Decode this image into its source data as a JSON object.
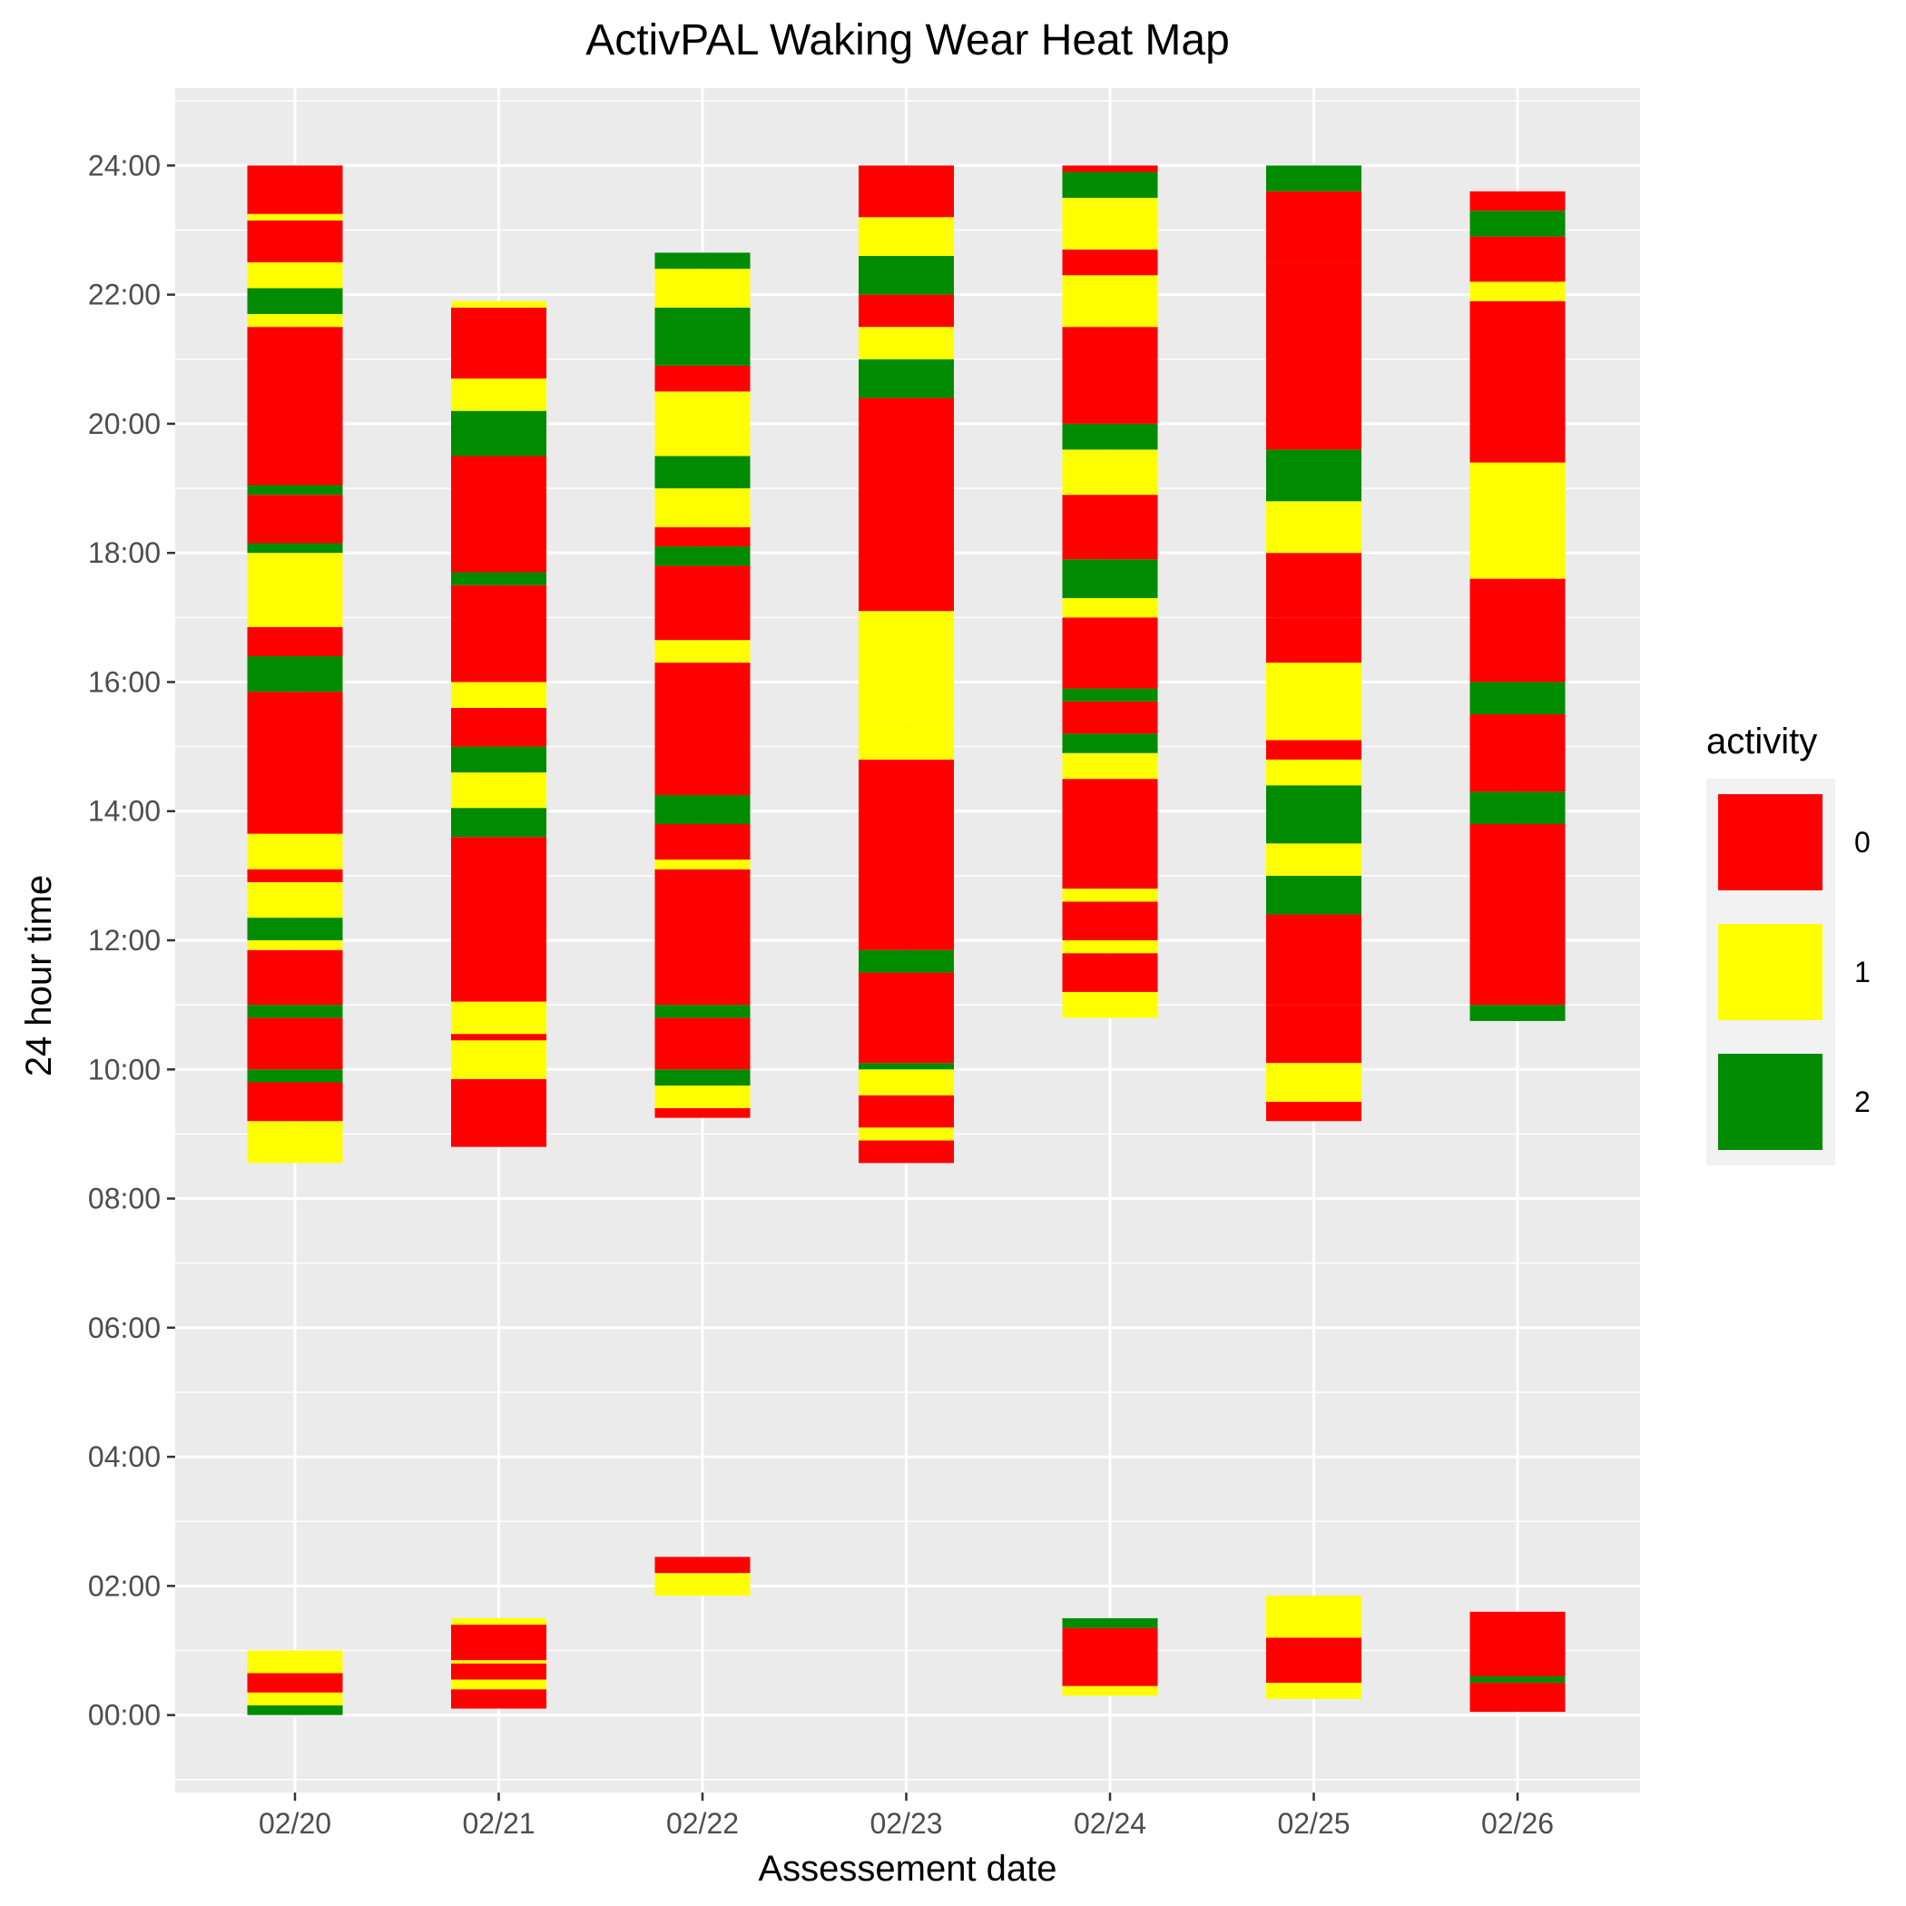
{
  "chart_data": {
    "type": "heatmap",
    "title": "ActivPAL Waking Wear Heat Map",
    "xlabel": "Assessement date",
    "ylabel": "24 hour time",
    "x_categories": [
      "02/20",
      "02/21",
      "02/22",
      "02/23",
      "02/24",
      "02/25",
      "02/26"
    ],
    "y_ticks": [
      "00:00",
      "02:00",
      "04:00",
      "06:00",
      "08:00",
      "10:00",
      "12:00",
      "14:00",
      "16:00",
      "18:00",
      "20:00",
      "22:00",
      "24:00"
    ],
    "ylim_hours": [
      -1.2,
      25.2
    ],
    "grid": true,
    "legend": {
      "title": "activity",
      "position": "right",
      "entries": [
        {
          "label": "0",
          "color": "#ff0000"
        },
        {
          "label": "1",
          "color": "#ffff00"
        },
        {
          "label": "2",
          "color": "#008b00"
        }
      ]
    },
    "series": [
      {
        "date": "02/20",
        "segments": [
          [
            0.0,
            0.15,
            2
          ],
          [
            0.15,
            0.35,
            1
          ],
          [
            0.35,
            0.65,
            0
          ],
          [
            0.65,
            1.0,
            1
          ],
          [
            8.55,
            9.2,
            1
          ],
          [
            9.2,
            9.8,
            0
          ],
          [
            9.8,
            10.0,
            2
          ],
          [
            10.0,
            10.8,
            0
          ],
          [
            10.8,
            11.0,
            2
          ],
          [
            11.0,
            11.85,
            0
          ],
          [
            11.85,
            12.0,
            1
          ],
          [
            12.0,
            12.35,
            2
          ],
          [
            12.35,
            12.9,
            1
          ],
          [
            12.9,
            13.1,
            0
          ],
          [
            13.1,
            13.65,
            1
          ],
          [
            13.65,
            15.85,
            0
          ],
          [
            15.85,
            16.4,
            2
          ],
          [
            16.4,
            16.85,
            0
          ],
          [
            16.85,
            18.0,
            1
          ],
          [
            18.0,
            18.15,
            2
          ],
          [
            18.15,
            18.9,
            0
          ],
          [
            18.9,
            19.05,
            2
          ],
          [
            19.05,
            21.5,
            0
          ],
          [
            21.5,
            21.7,
            1
          ],
          [
            21.7,
            22.1,
            2
          ],
          [
            22.1,
            22.5,
            1
          ],
          [
            22.5,
            23.15,
            0
          ],
          [
            23.15,
            23.25,
            1
          ],
          [
            23.25,
            24.0,
            0
          ]
        ]
      },
      {
        "date": "02/21",
        "segments": [
          [
            0.1,
            0.4,
            0
          ],
          [
            0.4,
            0.55,
            1
          ],
          [
            0.55,
            0.8,
            0
          ],
          [
            0.8,
            0.85,
            1
          ],
          [
            0.85,
            1.4,
            0
          ],
          [
            1.4,
            1.5,
            1
          ],
          [
            8.8,
            9.85,
            0
          ],
          [
            9.85,
            10.45,
            1
          ],
          [
            10.45,
            10.55,
            0
          ],
          [
            10.55,
            11.05,
            1
          ],
          [
            11.05,
            13.6,
            0
          ],
          [
            13.6,
            14.05,
            2
          ],
          [
            14.05,
            14.6,
            1
          ],
          [
            14.6,
            15.0,
            2
          ],
          [
            15.0,
            15.6,
            0
          ],
          [
            15.6,
            16.0,
            1
          ],
          [
            16.0,
            17.5,
            0
          ],
          [
            17.5,
            17.7,
            2
          ],
          [
            17.7,
            19.5,
            0
          ],
          [
            19.5,
            20.2,
            2
          ],
          [
            20.2,
            20.7,
            1
          ],
          [
            20.7,
            21.8,
            0
          ],
          [
            21.8,
            21.9,
            1
          ]
        ]
      },
      {
        "date": "02/22",
        "segments": [
          [
            1.85,
            2.2,
            1
          ],
          [
            2.2,
            2.45,
            0
          ],
          [
            9.25,
            9.4,
            0
          ],
          [
            9.4,
            9.75,
            1
          ],
          [
            9.75,
            10.0,
            2
          ],
          [
            10.0,
            10.8,
            0
          ],
          [
            10.8,
            11.0,
            2
          ],
          [
            11.0,
            13.1,
            0
          ],
          [
            13.1,
            13.25,
            1
          ],
          [
            13.25,
            13.8,
            0
          ],
          [
            13.8,
            14.25,
            2
          ],
          [
            14.25,
            16.3,
            0
          ],
          [
            16.3,
            16.65,
            1
          ],
          [
            16.65,
            17.8,
            0
          ],
          [
            17.8,
            18.1,
            2
          ],
          [
            18.1,
            18.4,
            0
          ],
          [
            18.4,
            19.0,
            1
          ],
          [
            19.0,
            19.5,
            2
          ],
          [
            19.5,
            20.5,
            1
          ],
          [
            20.5,
            20.9,
            0
          ],
          [
            20.9,
            21.8,
            2
          ],
          [
            21.8,
            22.4,
            1
          ],
          [
            22.4,
            22.65,
            2
          ]
        ]
      },
      {
        "date": "02/23",
        "segments": [
          [
            8.55,
            8.9,
            0
          ],
          [
            8.9,
            9.1,
            1
          ],
          [
            9.1,
            9.6,
            0
          ],
          [
            9.6,
            10.0,
            1
          ],
          [
            10.0,
            10.1,
            2
          ],
          [
            10.1,
            11.5,
            0
          ],
          [
            11.5,
            11.85,
            2
          ],
          [
            11.85,
            14.8,
            0
          ],
          [
            14.8,
            15.4,
            1
          ],
          [
            15.4,
            17.1,
            1
          ],
          [
            17.1,
            20.4,
            0
          ],
          [
            20.4,
            21.0,
            2
          ],
          [
            21.0,
            21.5,
            1
          ],
          [
            21.5,
            22.0,
            0
          ],
          [
            22.0,
            22.6,
            2
          ],
          [
            22.6,
            23.2,
            1
          ],
          [
            23.2,
            24.0,
            0
          ]
        ]
      },
      {
        "date": "02/24",
        "segments": [
          [
            0.3,
            0.45,
            1
          ],
          [
            0.45,
            1.35,
            0
          ],
          [
            1.35,
            1.5,
            2
          ],
          [
            10.8,
            11.2,
            1
          ],
          [
            11.2,
            11.8,
            0
          ],
          [
            11.8,
            12.0,
            1
          ],
          [
            12.0,
            12.6,
            0
          ],
          [
            12.6,
            12.8,
            1
          ],
          [
            12.8,
            14.5,
            0
          ],
          [
            14.5,
            14.9,
            1
          ],
          [
            14.9,
            15.2,
            2
          ],
          [
            15.2,
            15.7,
            0
          ],
          [
            15.7,
            15.9,
            2
          ],
          [
            15.9,
            17.0,
            0
          ],
          [
            17.0,
            17.3,
            1
          ],
          [
            17.3,
            17.9,
            2
          ],
          [
            17.9,
            18.9,
            0
          ],
          [
            18.9,
            19.6,
            1
          ],
          [
            19.6,
            20.0,
            2
          ],
          [
            20.0,
            21.5,
            0
          ],
          [
            21.5,
            22.3,
            1
          ],
          [
            22.3,
            22.7,
            0
          ],
          [
            22.7,
            23.5,
            1
          ],
          [
            23.5,
            23.9,
            2
          ],
          [
            23.9,
            24.0,
            0
          ]
        ]
      },
      {
        "date": "02/25",
        "segments": [
          [
            0.25,
            0.5,
            1
          ],
          [
            0.5,
            1.2,
            0
          ],
          [
            1.2,
            1.85,
            1
          ],
          [
            9.2,
            9.5,
            0
          ],
          [
            9.5,
            10.1,
            1
          ],
          [
            10.1,
            11.0,
            0
          ],
          [
            11.0,
            12.4,
            0
          ],
          [
            12.4,
            13.0,
            2
          ],
          [
            13.0,
            13.5,
            1
          ],
          [
            13.5,
            14.4,
            2
          ],
          [
            14.4,
            14.8,
            1
          ],
          [
            14.8,
            15.1,
            0
          ],
          [
            15.1,
            16.3,
            1
          ],
          [
            16.3,
            17.0,
            0
          ],
          [
            17.0,
            18.0,
            0
          ],
          [
            18.0,
            18.8,
            1
          ],
          [
            18.8,
            19.6,
            2
          ],
          [
            19.6,
            22.5,
            0
          ],
          [
            22.5,
            23.6,
            0
          ],
          [
            23.6,
            24.0,
            2
          ]
        ]
      },
      {
        "date": "02/26",
        "segments": [
          [
            0.05,
            0.5,
            0
          ],
          [
            0.5,
            0.6,
            2
          ],
          [
            0.6,
            1.6,
            0
          ],
          [
            10.75,
            11.0,
            2
          ],
          [
            11.0,
            13.8,
            0
          ],
          [
            13.8,
            14.3,
            2
          ],
          [
            14.3,
            15.5,
            0
          ],
          [
            15.5,
            16.0,
            2
          ],
          [
            16.0,
            17.6,
            0
          ],
          [
            17.6,
            18.7,
            1
          ],
          [
            18.7,
            19.4,
            1
          ],
          [
            19.4,
            21.9,
            0
          ],
          [
            21.9,
            22.2,
            1
          ],
          [
            22.2,
            22.9,
            0
          ],
          [
            22.9,
            23.3,
            2
          ],
          [
            23.3,
            23.6,
            0
          ]
        ]
      }
    ]
  }
}
